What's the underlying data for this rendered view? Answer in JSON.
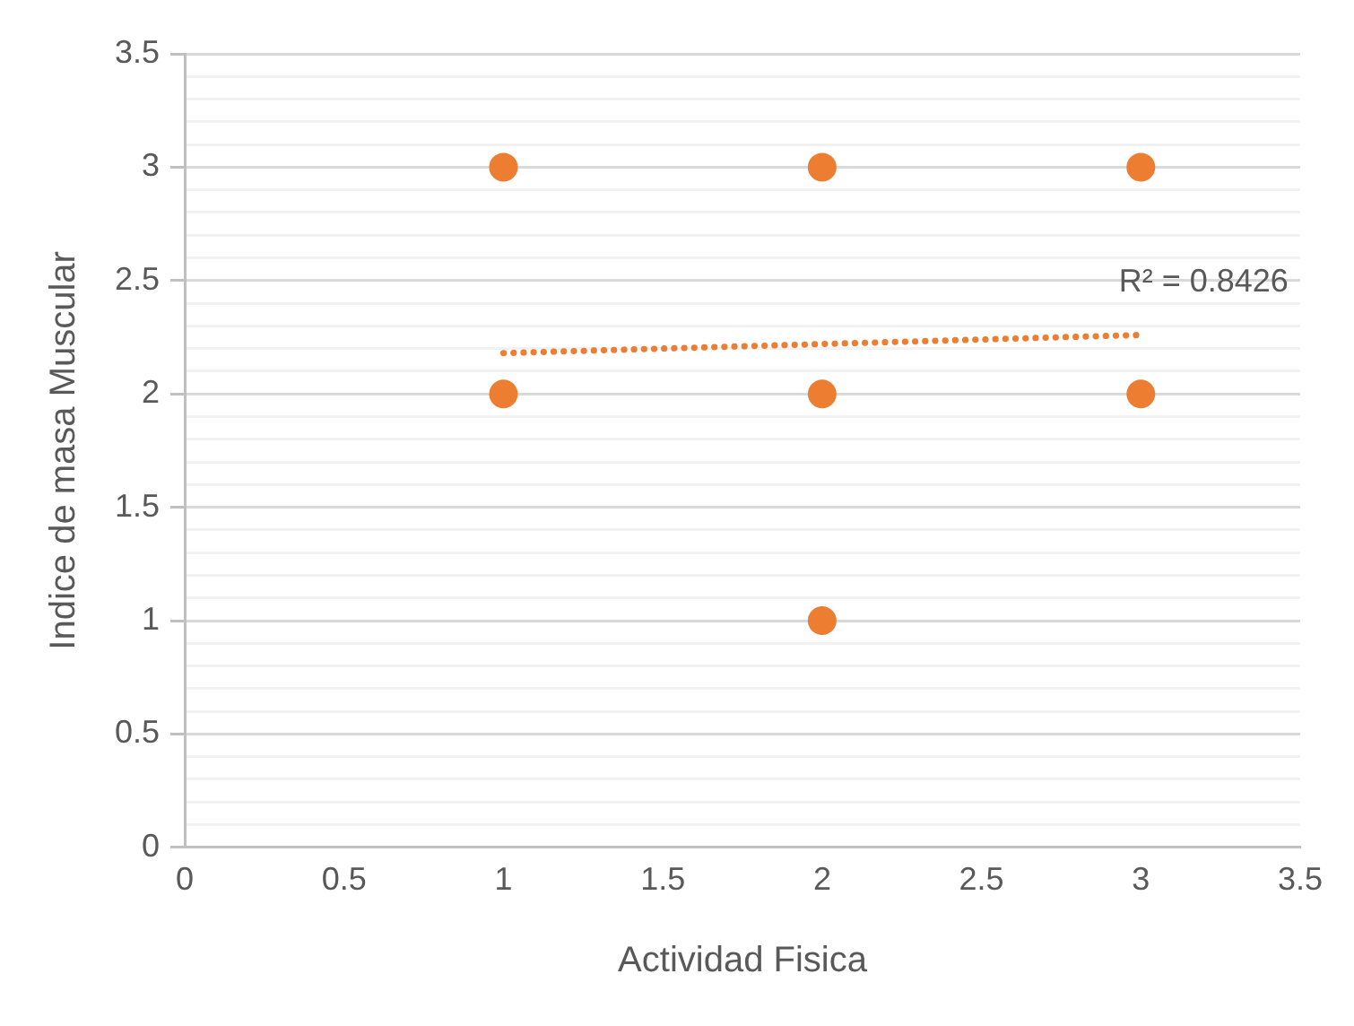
{
  "chart_data": {
    "type": "scatter",
    "xlabel": "Actividad Fisica",
    "ylabel": "Indice de masa Muscular",
    "series": [
      {
        "color": "#ed7d31",
        "x": [
          1,
          1,
          2,
          2,
          2,
          3,
          3
        ],
        "values": [
          3,
          2,
          3,
          2,
          1,
          3,
          2
        ]
      },
      {
        "type": "line",
        "color": "#ed7d31",
        "x": [
          1,
          3
        ],
        "values": [
          2.18,
          2.26
        ],
        "line_style": "dotted",
        "marker": "none"
      }
    ],
    "annotations": [
      "R² = 0.8426"
    ],
    "xlim": [
      0,
      3.5
    ],
    "xticks": [
      0,
      0.5,
      1,
      1.5,
      2,
      2.5,
      3,
      3.5
    ],
    "ylim": [
      0,
      3.5
    ],
    "yticks": [
      0,
      {
        "value": 0.1,
        "label": null
      },
      {
        "value": 0.2,
        "label": null
      },
      {
        "value": 0.3,
        "label": null
      },
      {
        "value": 0.4,
        "label": null
      },
      0.5,
      {
        "value": 0.6,
        "label": null
      },
      {
        "value": 0.7,
        "label": null
      },
      {
        "value": 0.8,
        "label": null
      },
      {
        "value": 0.9,
        "label": null
      },
      1,
      {
        "value": 1.1,
        "label": null
      },
      {
        "value": 1.2,
        "label": null
      },
      {
        "value": 1.3,
        "label": null
      },
      {
        "value": 1.4,
        "label": null
      },
      1.5,
      {
        "value": 1.6,
        "label": null
      },
      {
        "value": 1.7,
        "label": null
      },
      {
        "value": 1.8,
        "label": null
      },
      {
        "value": 1.9,
        "label": null
      },
      2,
      {
        "value": 2.1,
        "label": null
      },
      {
        "value": 2.2,
        "label": null
      },
      {
        "value": 2.3,
        "label": null
      },
      {
        "value": 2.4,
        "label": null
      },
      2.5,
      {
        "value": 2.6,
        "label": null
      },
      {
        "value": 2.7,
        "label": null
      },
      {
        "value": 2.8,
        "label": null
      },
      {
        "value": 2.9,
        "label": null
      },
      3,
      {
        "value": 3.1,
        "label": null
      },
      {
        "value": 3.2,
        "label": null
      },
      {
        "value": 3.3,
        "label": null
      },
      {
        "value": 3.4,
        "label": null
      },
      3.5
    ],
    "grid": "y",
    "legend": false,
    "marker": "circle"
  }
}
